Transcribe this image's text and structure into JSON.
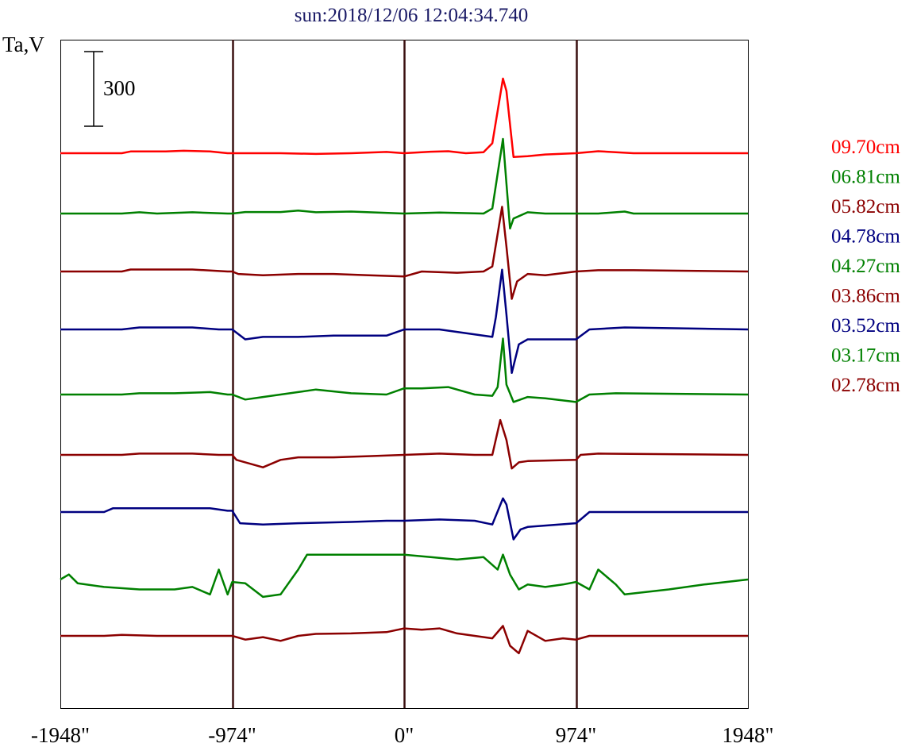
{
  "chart_data": {
    "type": "line",
    "title": "sun:2018/12/06 12:04:34.740",
    "ylabel": "Ta,V",
    "scale_bar_label": "300",
    "scale_bar_value": 300,
    "xlim": [
      -1948,
      1948
    ],
    "x_ticks": [
      {
        "value": -1948,
        "label": "-1948\""
      },
      {
        "value": -974,
        "label": "-974\""
      },
      {
        "value": 0,
        "label": "0\""
      },
      {
        "value": 974,
        "label": "974\""
      },
      {
        "value": 1948,
        "label": "1948\""
      }
    ],
    "vertical_lines": [
      -974,
      0,
      974
    ],
    "grid": false,
    "legend_position": "right",
    "series": [
      {
        "name": "09.70cm",
        "color": "#ff0000",
        "points": [
          [
            -1948,
            0
          ],
          [
            -1600,
            0
          ],
          [
            -1550,
            7
          ],
          [
            -1350,
            7
          ],
          [
            -1250,
            10
          ],
          [
            -1100,
            7
          ],
          [
            -1000,
            0
          ],
          [
            -974,
            0
          ],
          [
            -700,
            0
          ],
          [
            -500,
            -3
          ],
          [
            -300,
            0
          ],
          [
            -100,
            5
          ],
          [
            0,
            0
          ],
          [
            150,
            6
          ],
          [
            250,
            8
          ],
          [
            350,
            0
          ],
          [
            450,
            4
          ],
          [
            500,
            40
          ],
          [
            560,
            300
          ],
          [
            580,
            250
          ],
          [
            620,
            -15
          ],
          [
            700,
            -12
          ],
          [
            800,
            -5
          ],
          [
            974,
            0
          ],
          [
            1100,
            8
          ],
          [
            1300,
            0
          ],
          [
            1948,
            0
          ]
        ]
      },
      {
        "name": "06.81cm",
        "color": "#008000",
        "points": [
          [
            -1948,
            0
          ],
          [
            -1600,
            0
          ],
          [
            -1500,
            5
          ],
          [
            -1400,
            0
          ],
          [
            -1200,
            5
          ],
          [
            -1000,
            0
          ],
          [
            -974,
            0
          ],
          [
            -900,
            6
          ],
          [
            -700,
            6
          ],
          [
            -600,
            12
          ],
          [
            -500,
            5
          ],
          [
            -300,
            8
          ],
          [
            0,
            0
          ],
          [
            200,
            4
          ],
          [
            450,
            0
          ],
          [
            500,
            20
          ],
          [
            560,
            300
          ],
          [
            580,
            120
          ],
          [
            600,
            -60
          ],
          [
            620,
            -20
          ],
          [
            700,
            5
          ],
          [
            800,
            0
          ],
          [
            974,
            0
          ],
          [
            1100,
            0
          ],
          [
            1250,
            8
          ],
          [
            1300,
            0
          ],
          [
            1948,
            0
          ]
        ]
      },
      {
        "name": "05.82cm",
        "color": "#8b0000",
        "points": [
          [
            -1948,
            0
          ],
          [
            -1600,
            0
          ],
          [
            -1550,
            8
          ],
          [
            -1200,
            8
          ],
          [
            -1000,
            0
          ],
          [
            -974,
            0
          ],
          [
            -940,
            -10
          ],
          [
            -800,
            -15
          ],
          [
            -600,
            -10
          ],
          [
            -400,
            -10
          ],
          [
            -200,
            -15
          ],
          [
            0,
            -20
          ],
          [
            100,
            0
          ],
          [
            300,
            -5
          ],
          [
            450,
            0
          ],
          [
            500,
            20
          ],
          [
            555,
            260
          ],
          [
            580,
            100
          ],
          [
            610,
            -110
          ],
          [
            640,
            -40
          ],
          [
            700,
            -10
          ],
          [
            800,
            -15
          ],
          [
            974,
            0
          ],
          [
            1100,
            5
          ],
          [
            1300,
            5
          ],
          [
            1948,
            0
          ]
        ]
      },
      {
        "name": "04.78cm",
        "color": "#000080",
        "points": [
          [
            -1948,
            0
          ],
          [
            -1600,
            0
          ],
          [
            -1500,
            8
          ],
          [
            -1200,
            8
          ],
          [
            -1050,
            0
          ],
          [
            -974,
            0
          ],
          [
            -900,
            -40
          ],
          [
            -800,
            -30
          ],
          [
            -600,
            -30
          ],
          [
            -400,
            -25
          ],
          [
            -100,
            -25
          ],
          [
            0,
            0
          ],
          [
            200,
            0
          ],
          [
            400,
            -20
          ],
          [
            500,
            -30
          ],
          [
            520,
            50
          ],
          [
            555,
            240
          ],
          [
            580,
            60
          ],
          [
            610,
            -175
          ],
          [
            650,
            -60
          ],
          [
            700,
            -40
          ],
          [
            974,
            -40
          ],
          [
            1050,
            0
          ],
          [
            1250,
            8
          ],
          [
            1948,
            0
          ]
        ]
      },
      {
        "name": "04.27cm",
        "color": "#008000",
        "points": [
          [
            -1948,
            0
          ],
          [
            -1600,
            0
          ],
          [
            -1500,
            5
          ],
          [
            -1300,
            5
          ],
          [
            -1100,
            10
          ],
          [
            -1000,
            0
          ],
          [
            -974,
            0
          ],
          [
            -900,
            -20
          ],
          [
            -800,
            -10
          ],
          [
            -600,
            10
          ],
          [
            -500,
            20
          ],
          [
            -300,
            5
          ],
          [
            -100,
            0
          ],
          [
            0,
            25
          ],
          [
            100,
            25
          ],
          [
            250,
            30
          ],
          [
            400,
            0
          ],
          [
            500,
            -5
          ],
          [
            530,
            30
          ],
          [
            560,
            225
          ],
          [
            580,
            40
          ],
          [
            620,
            -30
          ],
          [
            700,
            -10
          ],
          [
            800,
            -15
          ],
          [
            974,
            -30
          ],
          [
            1050,
            0
          ],
          [
            1200,
            5
          ],
          [
            1948,
            0
          ]
        ]
      },
      {
        "name": "03.86cm",
        "color": "#8b0000",
        "points": [
          [
            -1948,
            0
          ],
          [
            -1600,
            0
          ],
          [
            -1500,
            5
          ],
          [
            -1200,
            5
          ],
          [
            -1050,
            0
          ],
          [
            -974,
            0
          ],
          [
            -950,
            -20
          ],
          [
            -800,
            -50
          ],
          [
            -700,
            -20
          ],
          [
            -600,
            -10
          ],
          [
            -400,
            -10
          ],
          [
            -200,
            -5
          ],
          [
            0,
            0
          ],
          [
            200,
            5
          ],
          [
            400,
            0
          ],
          [
            500,
            0
          ],
          [
            545,
            140
          ],
          [
            580,
            60
          ],
          [
            610,
            -55
          ],
          [
            650,
            -30
          ],
          [
            700,
            -25
          ],
          [
            974,
            -20
          ],
          [
            1000,
            0
          ],
          [
            1100,
            5
          ],
          [
            1948,
            0
          ]
        ]
      },
      {
        "name": "03.52cm",
        "color": "#000080",
        "points": [
          [
            -1948,
            0
          ],
          [
            -1700,
            0
          ],
          [
            -1650,
            15
          ],
          [
            -1100,
            15
          ],
          [
            -1000,
            5
          ],
          [
            -974,
            5
          ],
          [
            -930,
            -45
          ],
          [
            -800,
            -50
          ],
          [
            -600,
            -45
          ],
          [
            -300,
            -40
          ],
          [
            -100,
            -35
          ],
          [
            0,
            -35
          ],
          [
            200,
            -30
          ],
          [
            400,
            -35
          ],
          [
            500,
            -50
          ],
          [
            560,
            55
          ],
          [
            580,
            30
          ],
          [
            620,
            -110
          ],
          [
            660,
            -70
          ],
          [
            700,
            -60
          ],
          [
            974,
            -45
          ],
          [
            1000,
            -30
          ],
          [
            1050,
            0
          ],
          [
            1948,
            0
          ]
        ]
      },
      {
        "name": "03.17cm",
        "color": "#008000",
        "points": [
          [
            -1948,
            0
          ],
          [
            -1900,
            20
          ],
          [
            -1850,
            -15
          ],
          [
            -1700,
            -30
          ],
          [
            -1500,
            -40
          ],
          [
            -1300,
            -40
          ],
          [
            -1200,
            -30
          ],
          [
            -1100,
            -60
          ],
          [
            -1050,
            40
          ],
          [
            -1000,
            -60
          ],
          [
            -974,
            -10
          ],
          [
            -900,
            -15
          ],
          [
            -800,
            -70
          ],
          [
            -700,
            -60
          ],
          [
            -600,
            40
          ],
          [
            -550,
            100
          ],
          [
            -400,
            100
          ],
          [
            -200,
            100
          ],
          [
            0,
            100
          ],
          [
            150,
            90
          ],
          [
            300,
            80
          ],
          [
            450,
            90
          ],
          [
            530,
            40
          ],
          [
            560,
            100
          ],
          [
            600,
            20
          ],
          [
            650,
            -40
          ],
          [
            700,
            -20
          ],
          [
            800,
            -30
          ],
          [
            900,
            -20
          ],
          [
            974,
            -10
          ],
          [
            1050,
            -40
          ],
          [
            1100,
            40
          ],
          [
            1200,
            -20
          ],
          [
            1250,
            -60
          ],
          [
            1500,
            -40
          ],
          [
            1700,
            -20
          ],
          [
            1948,
            0
          ]
        ]
      },
      {
        "name": "02.78cm",
        "color": "#8b0000",
        "points": [
          [
            -1948,
            0
          ],
          [
            -1700,
            0
          ],
          [
            -1600,
            4
          ],
          [
            -1400,
            0
          ],
          [
            -1000,
            0
          ],
          [
            -974,
            0
          ],
          [
            -900,
            -15
          ],
          [
            -800,
            -5
          ],
          [
            -700,
            -20
          ],
          [
            -600,
            0
          ],
          [
            -500,
            8
          ],
          [
            -300,
            10
          ],
          [
            -100,
            15
          ],
          [
            0,
            30
          ],
          [
            100,
            25
          ],
          [
            200,
            30
          ],
          [
            300,
            10
          ],
          [
            400,
            0
          ],
          [
            500,
            -10
          ],
          [
            560,
            40
          ],
          [
            600,
            -40
          ],
          [
            650,
            -70
          ],
          [
            700,
            20
          ],
          [
            800,
            -20
          ],
          [
            900,
            -10
          ],
          [
            974,
            -15
          ],
          [
            1050,
            0
          ],
          [
            1948,
            0
          ]
        ]
      }
    ]
  }
}
